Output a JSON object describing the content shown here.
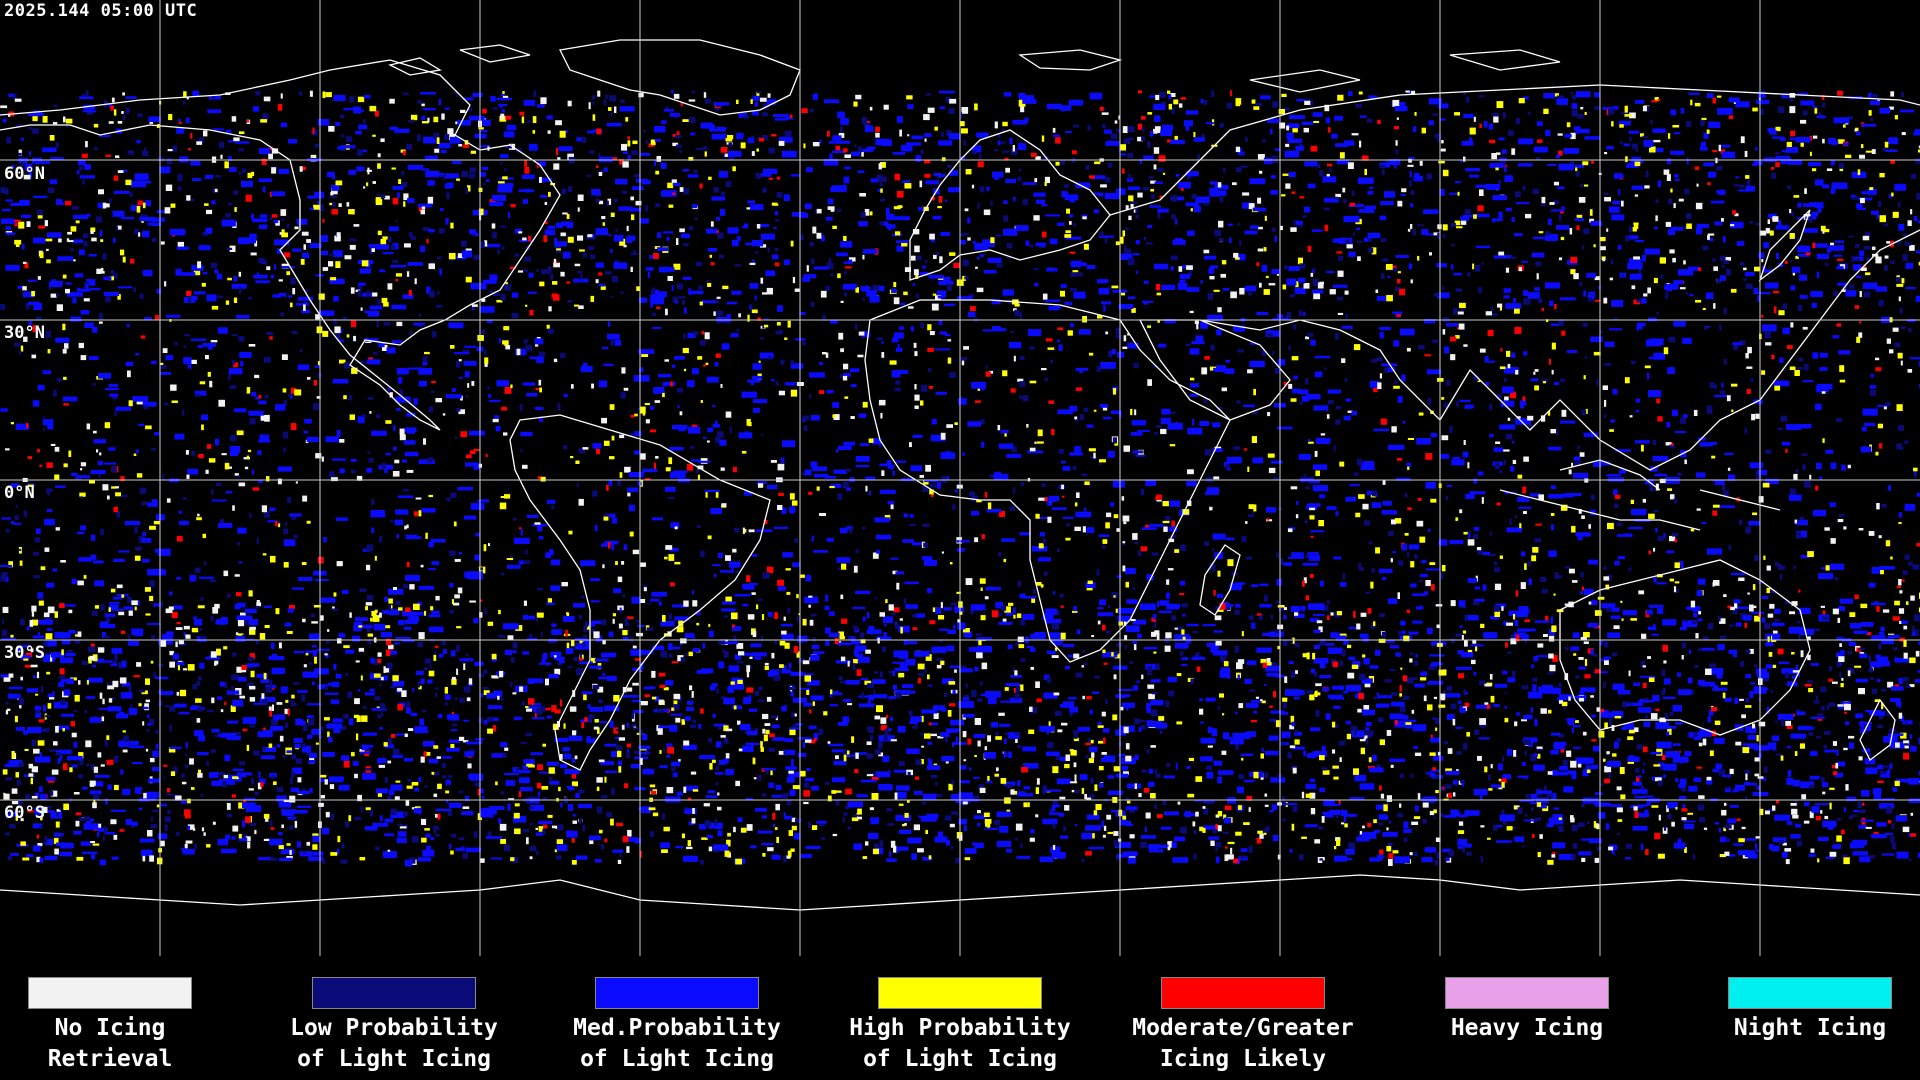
{
  "timestamp": "2025.144 05:00 UTC",
  "lat_labels": {
    "l60n": "60°N",
    "l30n": "30°N",
    "l0": "0°N",
    "l30s": "30°S",
    "l60s": "60°S"
  },
  "legend": [
    {
      "label": "No Icing\nRetrieval",
      "color": "#f2f2f2"
    },
    {
      "label": "Low Probability\nof Light Icing",
      "color": "#0a0a78"
    },
    {
      "label": "Med.Probability\nof Light Icing",
      "color": "#0a0aff"
    },
    {
      "label": "High Probability\nof Light Icing",
      "color": "#ffff00"
    },
    {
      "label": "Moderate/Greater\nIcing Likely",
      "color": "#ff0000"
    },
    {
      "label": "Heavy Icing",
      "color": "#e8a0e8"
    },
    {
      "label": "Night Icing",
      "color": "#00f0f0"
    }
  ]
}
